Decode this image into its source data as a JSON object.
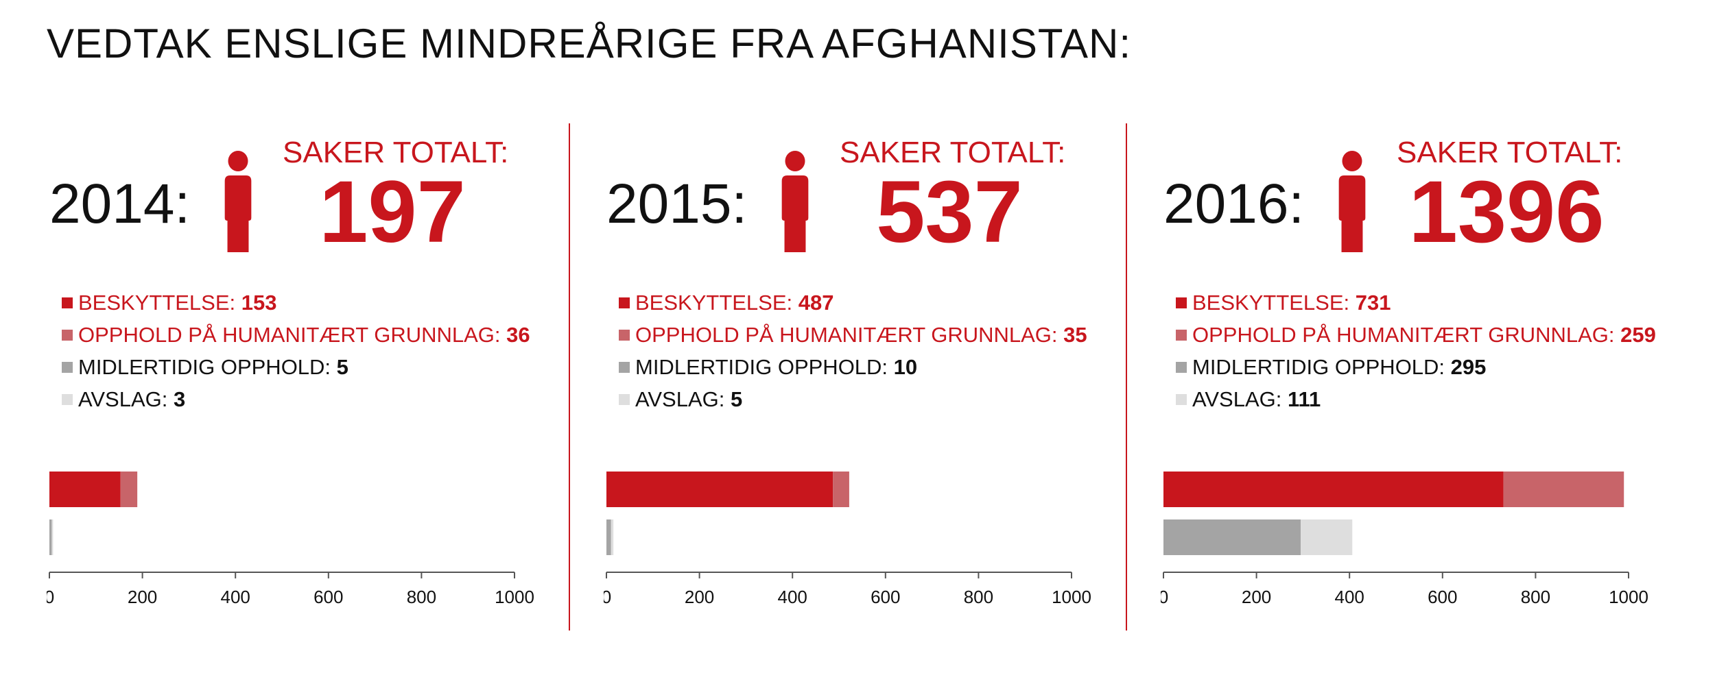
{
  "title": "VEDTAK ENSLIGE MINDREÅRIGE FRA AFGHANISTAN:",
  "colors": {
    "beskyttelse": "#c8161d",
    "humanitaert": "#c86469",
    "midlertidig": "#a4a4a4",
    "avslag": "#dedede",
    "accent": "#c8161d"
  },
  "legend": {
    "beskyttelse": "BESKYTTELSE: ",
    "humanitaert": "OPPHOLD PÅ HUMANITÆRT GRUNNLAG: ",
    "midlertidig": "MIDLERTIDIG OPPHOLD: ",
    "avslag": "AVSLAG: "
  },
  "icons": {
    "person": "person-icon"
  },
  "chart_data": [
    {
      "type": "bar",
      "stacked": true,
      "title": "2014:",
      "total_label": "SAKER TOTALT:",
      "total": "197",
      "values": {
        "beskyttelse": "153",
        "humanitaert": "36",
        "midlertidig": "5",
        "avslag": "3"
      },
      "xlim": [
        0,
        1000
      ],
      "ticks": [
        "0",
        "200",
        "400",
        "600",
        "800",
        "1000"
      ]
    },
    {
      "type": "bar",
      "stacked": true,
      "title": "2015:",
      "total_label": "SAKER TOTALT:",
      "total": "537",
      "values": {
        "beskyttelse": "487",
        "humanitaert": "35",
        "midlertidig": "10",
        "avslag": "5"
      },
      "xlim": [
        0,
        1000
      ],
      "ticks": [
        "0",
        "200",
        "400",
        "600",
        "800",
        "1000"
      ]
    },
    {
      "type": "bar",
      "stacked": true,
      "title": "2016:",
      "total_label": "SAKER TOTALT:",
      "total": "1396",
      "values": {
        "beskyttelse": "731",
        "humanitaert": "259",
        "midlertidig": "295",
        "avslag": "111"
      },
      "xlim": [
        0,
        1000
      ],
      "ticks": [
        "0",
        "200",
        "400",
        "600",
        "800",
        "1000"
      ]
    }
  ]
}
